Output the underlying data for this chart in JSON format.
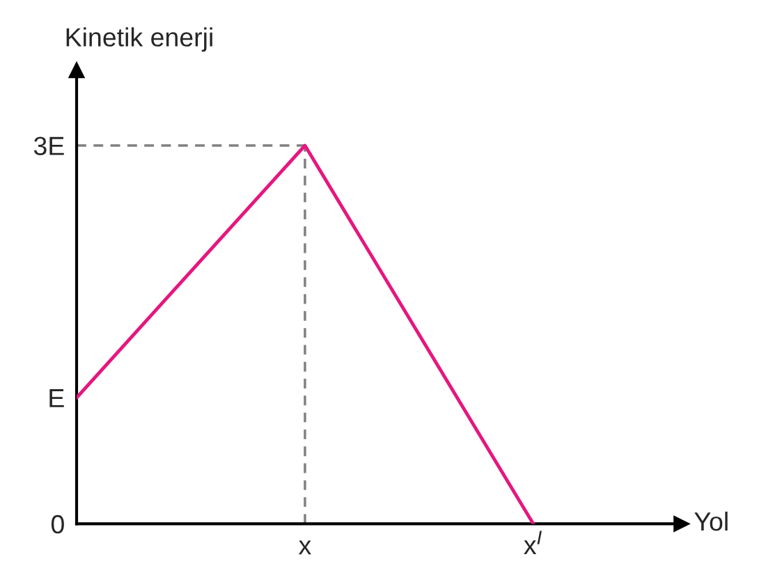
{
  "chart_data": {
    "type": "line",
    "xlabel": "Yol",
    "ylabel": "Kinetik enerji",
    "categories": [
      null,
      "x",
      "x$^{I}$"
    ],
    "series": [
      {
        "color": "#e5177e",
        "values": [
          1,
          3,
          0
        ]
      }
    ],
    "ylim": [
      0,
      3.6
    ],
    "yticks": [
      {
        "value": 0,
        "label": "0"
      },
      {
        "value": 1,
        "label": "E"
      },
      {
        "value": 3,
        "label": "3E"
      }
    ],
    "ref_lines": [
      {
        "axis": "y",
        "value": 3,
        "color": "#808080",
        "line_style": "dashed"
      },
      {
        "axis": "x",
        "value": "x",
        "color": "#808080",
        "line_style": "dashed"
      }
    ],
    "grid": false,
    "legend": false
  }
}
